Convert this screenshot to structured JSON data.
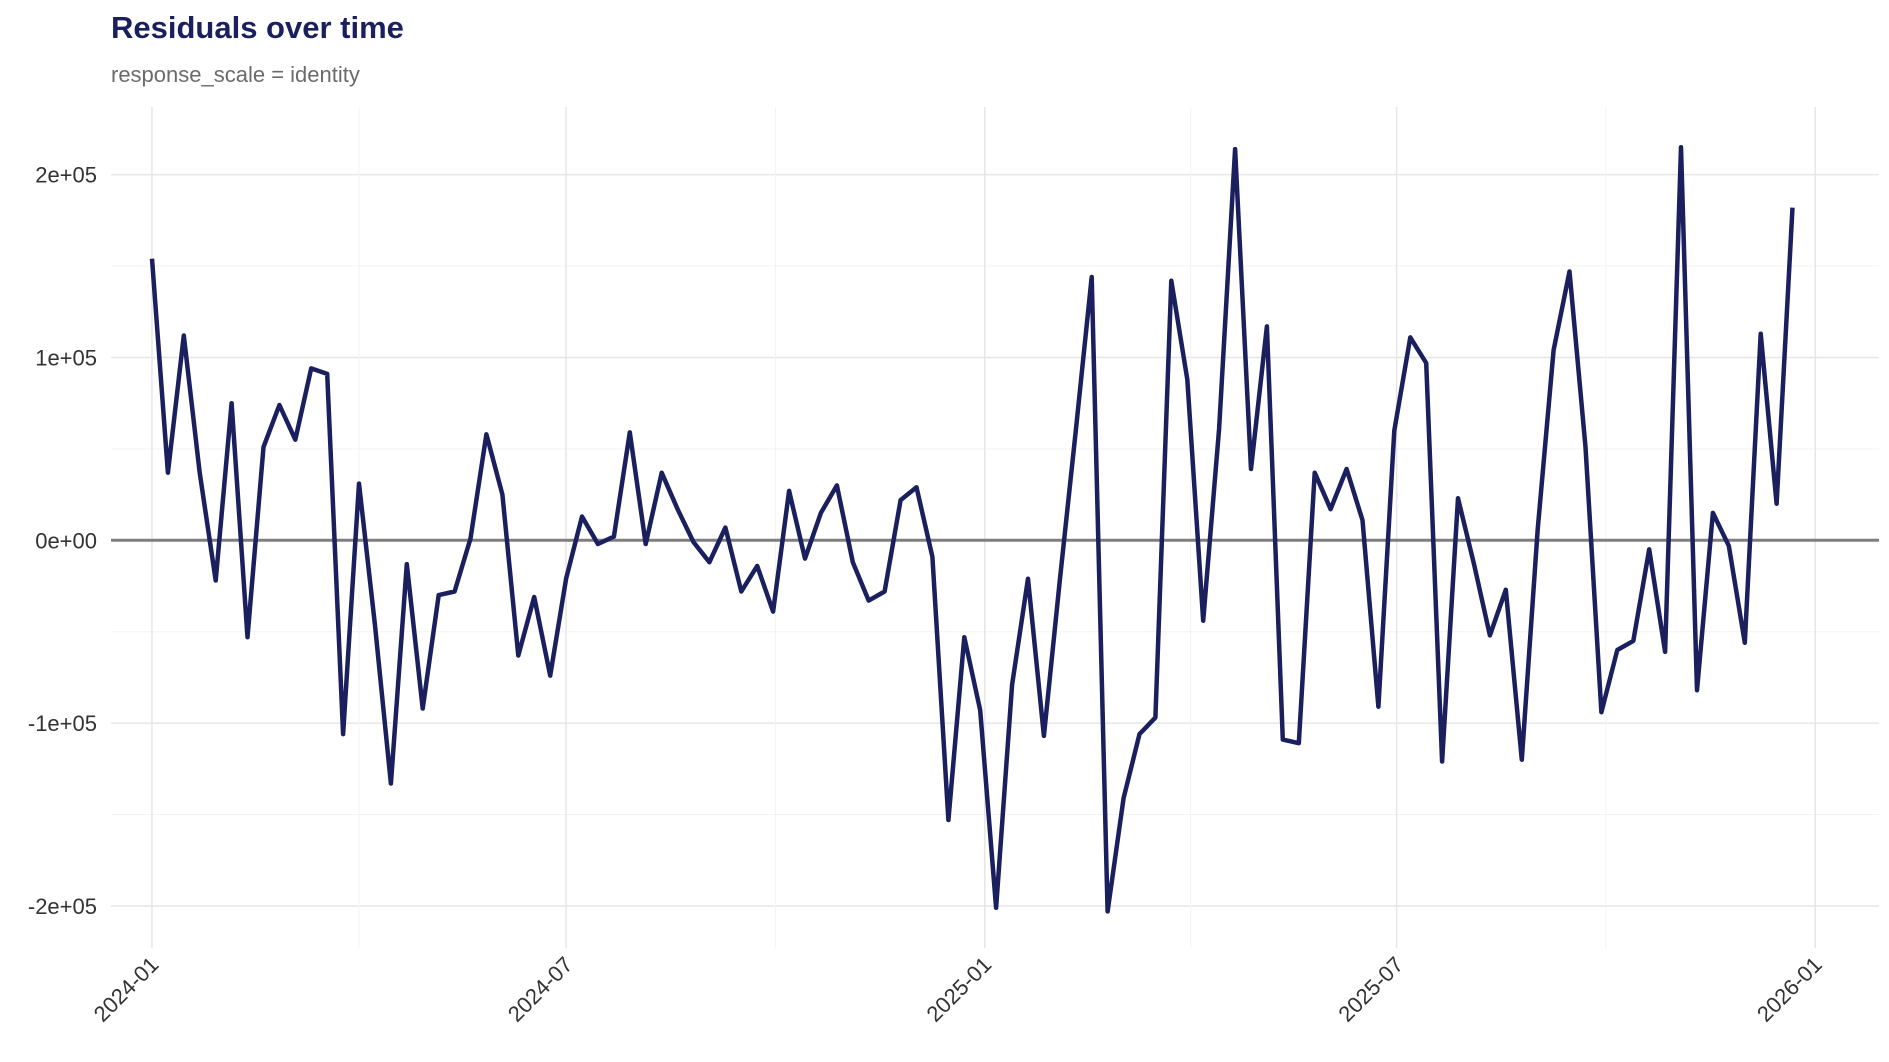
{
  "chart_data": {
    "type": "line",
    "title": "Residuals over time",
    "subtitle": "response_scale = identity",
    "xlabel": "",
    "ylabel": "",
    "x_ticks": [
      "2024-01",
      "2024-07",
      "2025-01",
      "2025-07",
      "2026-01"
    ],
    "y_ticks": [
      "-2e+05",
      "-1e+05",
      "0e+00",
      "1e+05",
      "2e+05"
    ],
    "y_tick_values": [
      -200000,
      -100000,
      0,
      100000,
      200000
    ],
    "xlim": [
      "2023-12-14",
      "2026-01-29"
    ],
    "ylim": [
      -223000,
      237000
    ],
    "grid": true,
    "reference_line": 0,
    "line_color": "#1a1f5e",
    "series": [
      {
        "x": [
          "2024-01-01",
          "2024-01-08",
          "2024-01-15",
          "2024-01-22",
          "2024-01-29",
          "2024-02-05",
          "2024-02-12",
          "2024-02-19",
          "2024-02-26",
          "2024-03-04",
          "2024-03-11",
          "2024-03-18",
          "2024-03-25",
          "2024-04-01",
          "2024-04-08",
          "2024-04-15",
          "2024-04-22",
          "2024-04-29",
          "2024-05-06",
          "2024-05-13",
          "2024-05-20",
          "2024-05-27",
          "2024-06-03",
          "2024-06-10",
          "2024-06-17",
          "2024-06-24",
          "2024-07-01",
          "2024-07-08",
          "2024-07-15",
          "2024-07-22",
          "2024-07-29",
          "2024-08-05",
          "2024-08-12",
          "2024-08-19",
          "2024-08-26",
          "2024-09-02",
          "2024-09-09",
          "2024-09-16",
          "2024-09-23",
          "2024-09-30",
          "2024-10-07",
          "2024-10-14",
          "2024-10-21",
          "2024-10-28",
          "2024-11-04",
          "2024-11-11",
          "2024-11-18",
          "2024-11-25",
          "2024-12-02",
          "2024-12-09",
          "2024-12-16",
          "2024-12-23",
          "2024-12-30",
          "2025-01-06",
          "2025-01-13",
          "2025-01-20",
          "2025-01-27",
          "2025-02-03",
          "2025-02-10",
          "2025-02-17",
          "2025-02-24",
          "2025-03-03",
          "2025-03-10",
          "2025-03-17",
          "2025-03-24",
          "2025-03-31",
          "2025-04-07",
          "2025-04-14",
          "2025-04-21",
          "2025-04-28",
          "2025-05-05",
          "2025-05-12",
          "2025-05-19",
          "2025-05-26",
          "2025-06-02",
          "2025-06-09",
          "2025-06-16",
          "2025-06-23",
          "2025-06-30",
          "2025-07-07",
          "2025-07-14",
          "2025-07-21",
          "2025-07-28",
          "2025-08-04",
          "2025-08-11",
          "2025-08-18",
          "2025-08-25",
          "2025-09-01",
          "2025-09-08",
          "2025-09-15",
          "2025-09-22",
          "2025-09-29",
          "2025-10-06",
          "2025-10-13",
          "2025-10-20",
          "2025-10-27",
          "2025-11-03",
          "2025-11-10",
          "2025-11-17",
          "2025-11-24",
          "2025-12-01",
          "2025-12-08",
          "2025-12-15",
          "2025-12-22"
        ],
        "y": [
          154000,
          37000,
          112000,
          37000,
          -22000,
          75000,
          -53000,
          51000,
          74000,
          55000,
          94000,
          91000,
          -106000,
          31000,
          -46000,
          -133000,
          -13000,
          -92000,
          -30000,
          -28000,
          1000,
          58000,
          25000,
          -63000,
          -31000,
          -74000,
          -21000,
          13000,
          -2000,
          2000,
          59000,
          -2000,
          37000,
          17000,
          -1000,
          -12000,
          7000,
          -28000,
          -14000,
          -39000,
          27000,
          -10000,
          15000,
          30000,
          -12000,
          -33000,
          -28000,
          22000,
          29000,
          -9000,
          -153000,
          -53000,
          -93000,
          -201000,
          -79000,
          -21000,
          -107000,
          -22000,
          60000,
          144000,
          -203000,
          -141000,
          -106000,
          -97000,
          142000,
          88000,
          -44000,
          61000,
          214000,
          39000,
          117000,
          -109000,
          -111000,
          37000,
          17000,
          39000,
          11000,
          -91000,
          60000,
          111000,
          97000,
          -121000,
          23000,
          -13000,
          -52000,
          -27000,
          -120000,
          6000,
          104000,
          147000,
          51000,
          -94000,
          -60000,
          -55000,
          -5000,
          -61000,
          215000,
          -82000,
          15000,
          -3000,
          -56000,
          113000,
          20000,
          182000
        ]
      }
    ]
  }
}
